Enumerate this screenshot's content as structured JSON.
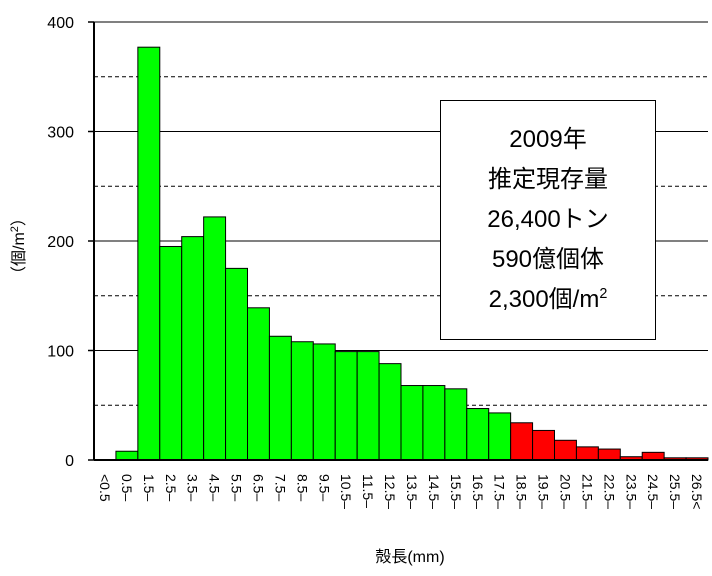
{
  "chart_data": {
    "type": "bar",
    "ylabel": "（個/m",
    "ylabel_sup": "2",
    "ylabel_close": "）",
    "xlabel": "殻長(mm)",
    "ylim": [
      0,
      400
    ],
    "yticks": [
      "0",
      "100",
      "200",
      "300",
      "400"
    ],
    "grid": "dashed lines every 50, solid at 100",
    "categories": [
      "<0.5",
      "0.5–",
      "1.5–",
      "2.5–",
      "3.5–",
      "4.5–",
      "5.5–",
      "6.5–",
      "7.5–",
      "8.5–",
      "9.5–",
      "10.5–",
      "11.5–",
      "12.5–",
      "13.5–",
      "14.5–",
      "15.5–",
      "16.5–",
      "17.5–",
      "18.5–",
      "19.5–",
      "20.5–",
      "21.5–",
      "22.5–",
      "23.5–",
      "24.5–",
      "25.5–",
      "26.5<"
    ],
    "values": [
      0,
      8,
      377,
      195,
      204,
      222,
      175,
      139,
      113,
      108,
      106,
      99,
      99,
      88,
      68,
      68,
      65,
      47,
      43,
      34,
      27,
      18,
      12,
      10,
      3,
      7,
      2,
      2
    ],
    "colors": [
      "#00ff00",
      "#00ff00",
      "#00ff00",
      "#00ff00",
      "#00ff00",
      "#00ff00",
      "#00ff00",
      "#00ff00",
      "#00ff00",
      "#00ff00",
      "#00ff00",
      "#00ff00",
      "#00ff00",
      "#00ff00",
      "#00ff00",
      "#00ff00",
      "#00ff00",
      "#00ff00",
      "#00ff00",
      "#ff0000",
      "#ff0000",
      "#ff0000",
      "#ff0000",
      "#ff0000",
      "#ff0000",
      "#ff0000",
      "#ff0000",
      "#ff0000"
    ]
  },
  "info_box": {
    "year": "2009年",
    "label": "推定現存量",
    "tons": "26,400トン",
    "individuals": "590億個体",
    "density": "2,300個/m",
    "density_sup": "2"
  }
}
